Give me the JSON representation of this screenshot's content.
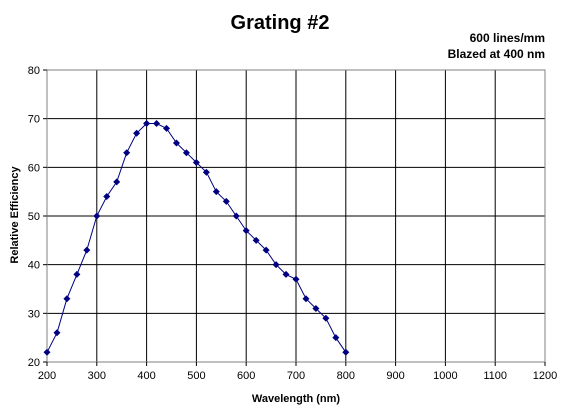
{
  "chart_data": {
    "type": "line",
    "title": "Grating #2",
    "annotations": [
      "600 lines/mm",
      "Blazed at 400 nm"
    ],
    "xlabel": "Wavelength (nm)",
    "ylabel": "Relative Efficiency",
    "xlim": [
      200,
      1200
    ],
    "ylim": [
      20,
      80
    ],
    "xticks": [
      200,
      300,
      400,
      500,
      600,
      700,
      800,
      900,
      1000,
      1100,
      1200
    ],
    "yticks": [
      20,
      30,
      40,
      50,
      60,
      70,
      80
    ],
    "grid": true,
    "legend": "none",
    "series": [
      {
        "color": "#000080",
        "marker": "diamond",
        "x": [
          200,
          220,
          240,
          260,
          280,
          300,
          320,
          340,
          360,
          380,
          400,
          420,
          440,
          460,
          480,
          500,
          520,
          540,
          560,
          580,
          600,
          620,
          640,
          660,
          680,
          700,
          720,
          740,
          760,
          780,
          800
        ],
        "y": [
          22,
          26,
          33,
          38,
          43,
          50,
          54,
          57,
          63,
          67,
          69,
          69,
          68,
          65,
          63,
          61,
          59,
          55,
          53,
          50,
          47,
          45,
          43,
          40,
          38,
          37,
          33,
          31,
          29,
          25,
          22
        ]
      }
    ]
  }
}
